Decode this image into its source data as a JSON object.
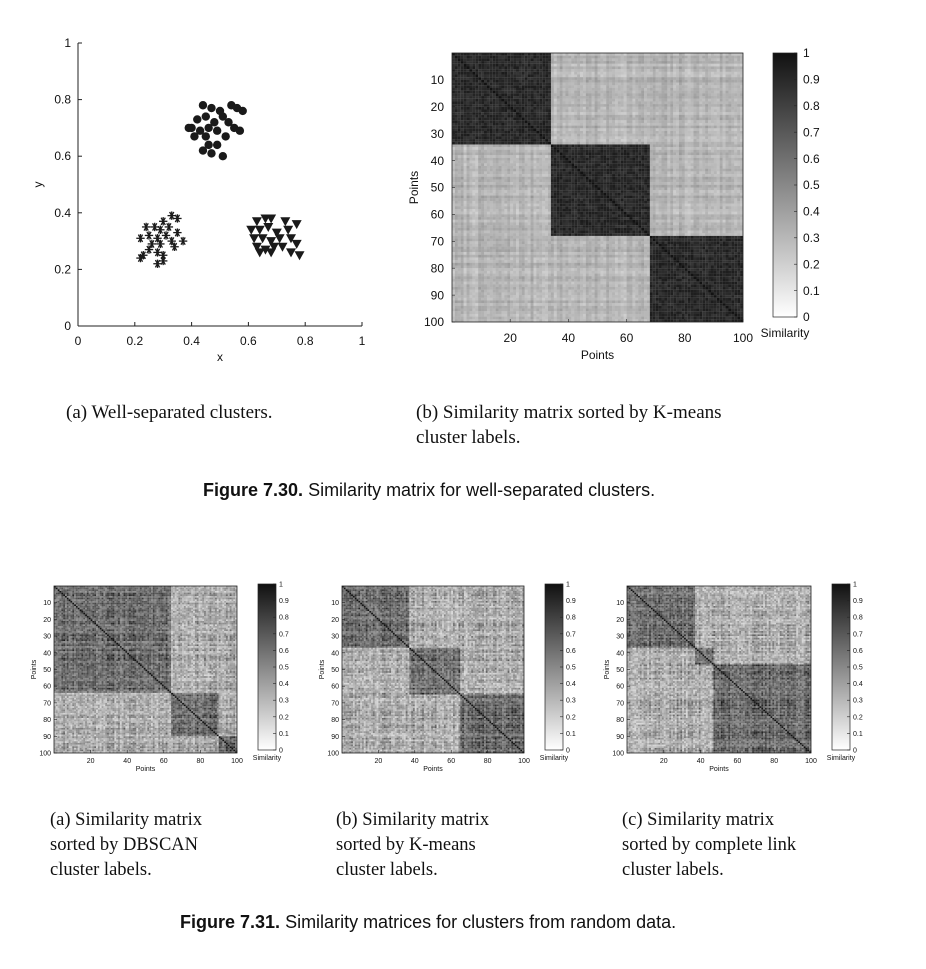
{
  "figure_30": {
    "label": "Figure 7.30.",
    "caption": "Similarity matrix for well-separated clusters.",
    "sub_a": "(a) Well-separated clusters.",
    "sub_b_line1": "(b) Similarity matrix sorted by K-means",
    "sub_b_line2": "cluster labels."
  },
  "figure_31": {
    "label": "Figure 7.31.",
    "caption": "Similarity matrices for clusters from random data.",
    "sub_a": [
      "(a) Similarity matrix",
      "sorted by DBSCAN",
      "cluster labels."
    ],
    "sub_b": [
      "(b) Similarity matrix",
      "sorted by K-means",
      "cluster labels."
    ],
    "sub_c": [
      "(c) Similarity matrix",
      "sorted by complete link",
      "cluster labels."
    ]
  },
  "chart_data": [
    {
      "id": "scatter",
      "type": "scatter",
      "xlabel": "x",
      "ylabel": "y",
      "xlim": [
        0,
        1
      ],
      "ylim": [
        0,
        1
      ],
      "xticks": [
        "0",
        "0.2",
        "0.4",
        "0.6",
        "0.8",
        "1"
      ],
      "yticks": [
        "0",
        "0.2",
        "0.4",
        "0.6",
        "0.8",
        "1"
      ],
      "series": [
        {
          "marker": "circle",
          "points": [
            [
              0.44,
              0.78
            ],
            [
              0.47,
              0.77
            ],
            [
              0.5,
              0.76
            ],
            [
              0.54,
              0.78
            ],
            [
              0.56,
              0.77
            ],
            [
              0.45,
              0.74
            ],
            [
              0.48,
              0.72
            ],
            [
              0.51,
              0.74
            ],
            [
              0.42,
              0.73
            ],
            [
              0.4,
              0.7
            ],
            [
              0.43,
              0.69
            ],
            [
              0.46,
              0.7
            ],
            [
              0.49,
              0.69
            ],
            [
              0.53,
              0.72
            ],
            [
              0.55,
              0.7
            ],
            [
              0.57,
              0.69
            ],
            [
              0.41,
              0.67
            ],
            [
              0.45,
              0.67
            ],
            [
              0.52,
              0.67
            ],
            [
              0.46,
              0.64
            ],
            [
              0.49,
              0.64
            ],
            [
              0.44,
              0.62
            ],
            [
              0.47,
              0.61
            ],
            [
              0.51,
              0.6
            ],
            [
              0.39,
              0.7
            ],
            [
              0.58,
              0.76
            ]
          ]
        },
        {
          "marker": "star",
          "points": [
            [
              0.24,
              0.35
            ],
            [
              0.27,
              0.35
            ],
            [
              0.3,
              0.37
            ],
            [
              0.33,
              0.39
            ],
            [
              0.35,
              0.38
            ],
            [
              0.29,
              0.34
            ],
            [
              0.32,
              0.35
            ],
            [
              0.25,
              0.32
            ],
            [
              0.28,
              0.31
            ],
            [
              0.31,
              0.32
            ],
            [
              0.22,
              0.31
            ],
            [
              0.26,
              0.29
            ],
            [
              0.29,
              0.29
            ],
            [
              0.33,
              0.3
            ],
            [
              0.37,
              0.3
            ],
            [
              0.25,
              0.27
            ],
            [
              0.28,
              0.26
            ],
            [
              0.34,
              0.28
            ],
            [
              0.3,
              0.25
            ],
            [
              0.23,
              0.25
            ],
            [
              0.22,
              0.24
            ],
            [
              0.3,
              0.23
            ],
            [
              0.28,
              0.22
            ],
            [
              0.35,
              0.33
            ]
          ]
        },
        {
          "marker": "triangle",
          "points": [
            [
              0.63,
              0.37
            ],
            [
              0.66,
              0.38
            ],
            [
              0.68,
              0.38
            ],
            [
              0.73,
              0.37
            ],
            [
              0.77,
              0.36
            ],
            [
              0.64,
              0.34
            ],
            [
              0.67,
              0.35
            ],
            [
              0.7,
              0.33
            ],
            [
              0.74,
              0.34
            ],
            [
              0.62,
              0.31
            ],
            [
              0.65,
              0.31
            ],
            [
              0.68,
              0.3
            ],
            [
              0.71,
              0.31
            ],
            [
              0.75,
              0.31
            ],
            [
              0.63,
              0.28
            ],
            [
              0.66,
              0.27
            ],
            [
              0.69,
              0.28
            ],
            [
              0.72,
              0.28
            ],
            [
              0.77,
              0.29
            ],
            [
              0.64,
              0.26
            ],
            [
              0.68,
              0.26
            ],
            [
              0.75,
              0.26
            ],
            [
              0.78,
              0.25
            ],
            [
              0.61,
              0.34
            ]
          ]
        }
      ]
    },
    {
      "id": "matrix_kmeans_separated",
      "type": "heatmap",
      "xlabel": "Points",
      "ylabel": "Points",
      "xticks": [
        "20",
        "40",
        "60",
        "80",
        "100"
      ],
      "yticks": [
        "10",
        "20",
        "30",
        "40",
        "50",
        "60",
        "70",
        "80",
        "90",
        "100"
      ],
      "n_points": 100,
      "cluster_boundaries": [
        34,
        68
      ],
      "within_similarity": 0.88,
      "between_similarity": 0.25,
      "colorbar_label": "Similarity",
      "colorbar_ticks": [
        "0",
        "0.1",
        "0.2",
        "0.3",
        "0.4",
        "0.5",
        "0.6",
        "0.7",
        "0.8",
        "0.9",
        "1"
      ]
    },
    {
      "id": "matrix_dbscan_random",
      "type": "heatmap",
      "xlabel": "Points",
      "ylabel": "Points",
      "xticks": [
        "20",
        "40",
        "60",
        "80",
        "100"
      ],
      "yticks": [
        "10",
        "20",
        "30",
        "40",
        "50",
        "60",
        "70",
        "80",
        "90",
        "100"
      ],
      "cluster_boundaries": [
        64,
        90
      ],
      "colorbar_label": "Similarity",
      "colorbar_ticks": [
        "0",
        "0.1",
        "0.2",
        "0.3",
        "0.4",
        "0.5",
        "0.6",
        "0.7",
        "0.8",
        "0.9",
        "1"
      ]
    },
    {
      "id": "matrix_kmeans_random",
      "type": "heatmap",
      "xlabel": "Points",
      "ylabel": "Points",
      "xticks": [
        "20",
        "40",
        "60",
        "80",
        "100"
      ],
      "yticks": [
        "10",
        "20",
        "30",
        "40",
        "50",
        "60",
        "70",
        "80",
        "90",
        "100"
      ],
      "cluster_boundaries": [
        37,
        65
      ],
      "colorbar_label": "Similarity",
      "colorbar_ticks": [
        "0",
        "0.1",
        "0.2",
        "0.3",
        "0.4",
        "0.5",
        "0.6",
        "0.7",
        "0.8",
        "0.9",
        "1"
      ]
    },
    {
      "id": "matrix_completelink_random",
      "type": "heatmap",
      "xlabel": "Points",
      "ylabel": "Points",
      "xticks": [
        "20",
        "40",
        "60",
        "80",
        "100"
      ],
      "yticks": [
        "10",
        "20",
        "30",
        "40",
        "50",
        "60",
        "70",
        "80",
        "90",
        "100"
      ],
      "cluster_boundaries": [
        37,
        47
      ],
      "colorbar_label": "Similarity",
      "colorbar_ticks": [
        "0",
        "0.1",
        "0.2",
        "0.3",
        "0.4",
        "0.5",
        "0.6",
        "0.7",
        "0.8",
        "0.9",
        "1"
      ]
    }
  ]
}
